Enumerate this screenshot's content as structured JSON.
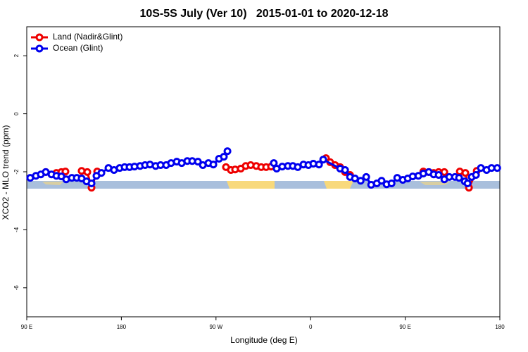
{
  "chart_data": {
    "type": "line",
    "title": "10S-5S July (Ver 10)   2015-01-01 to 2020-12-18",
    "x_label": "Longitude (deg E)",
    "y_label": "XCO2 - MLO trend (ppm)",
    "xlim": [
      90,
      540
    ],
    "ylim": [
      -7,
      3
    ],
    "xticks": [
      {
        "value": 90,
        "label": "90 E"
      },
      180,
      {
        "value": 270,
        "label": "90 W"
      },
      {
        "value": 360,
        "label": "0"
      },
      {
        "value": 450,
        "label": "90 E"
      },
      {
        "value": 540,
        "label": "180"
      }
    ],
    "yticks": [
      2,
      0,
      -2,
      -4,
      -6
    ],
    "legend": "topleft",
    "series": [
      {
        "name": "Land (Nadir&Glint)",
        "color": "#ee0000",
        "x": [
          108.1,
          118.2,
          122.9,
          126.8,
          134,
          142.2,
          147.6,
          151.6,
          157,
          220,
          279.5,
          284.2,
          288.2,
          293.6,
          298.3,
          303,
          308.3,
          313,
          317.7,
          322.4,
          350,
          374.6,
          378.6,
          383.3,
          388.1,
          392.8,
          397.5,
          430,
          467.2,
          472.4,
          477.1,
          481.8,
          487.2,
          495,
          501.9,
          507.2,
          510.6,
          518
        ],
        "values": [
          -2.01,
          -2.04,
          -2.01,
          -1.99,
          null,
          -1.97,
          -2.01,
          -2.55,
          -1.99,
          null,
          -1.84,
          -1.94,
          -1.92,
          -1.89,
          -1.8,
          -1.77,
          -1.8,
          -1.84,
          -1.84,
          -1.82,
          null,
          -1.53,
          -1.67,
          -1.77,
          -1.84,
          -2.01,
          -2.11,
          null,
          -1.99,
          -2.01,
          -2.04,
          -2.01,
          -2.01,
          null,
          -1.99,
          -2.04,
          -2.55,
          -1.97
        ]
      },
      {
        "name": "Ocean (Glint)",
        "color": "#0000ee",
        "x": [
          93.3,
          98.7,
          103.4,
          108.1,
          113.5,
          118.2,
          122.9,
          127.5,
          132.9,
          137.6,
          142.2,
          146.9,
          151.6,
          156.3,
          161,
          167.7,
          173,
          178.4,
          183.1,
          187.8,
          192.5,
          197.8,
          202.5,
          207.2,
          212.6,
          217.3,
          222.6,
          227.3,
          232.7,
          237.4,
          242.7,
          247.4,
          252.8,
          257.5,
          262.8,
          267.5,
          272.9,
          277.5,
          280.9,
          300,
          325,
          327.7,
          333,
          338.4,
          343.1,
          347.8,
          353.2,
          357.9,
          362.6,
          368,
          372,
          388.1,
          392.8,
          397.5,
          402.2,
          407.6,
          412.9,
          417.6,
          423,
          427.5,
          432.3,
          437,
          442.4,
          447.7,
          452.4,
          457.1,
          462.5,
          467.2,
          472.4,
          477.1,
          481.8,
          487.2,
          491.9,
          497.3,
          501.2,
          506.6,
          509.3,
          513.3,
          517.3,
          522,
          527.4,
          532.1,
          537.5
        ],
        "values": [
          -2.21,
          -2.14,
          -2.09,
          -2.01,
          -2.09,
          -2.14,
          -2.16,
          -2.26,
          -2.21,
          -2.21,
          -2.23,
          -2.33,
          -2.4,
          -2.14,
          -2.04,
          -1.87,
          -1.94,
          -1.87,
          -1.84,
          -1.84,
          -1.82,
          -1.8,
          -1.77,
          -1.75,
          -1.8,
          -1.77,
          -1.77,
          -1.7,
          -1.65,
          -1.7,
          -1.63,
          -1.63,
          -1.65,
          -1.77,
          -1.7,
          -1.75,
          -1.55,
          -1.48,
          -1.29,
          null,
          -1.7,
          -1.89,
          -1.82,
          -1.8,
          -1.8,
          -1.84,
          -1.75,
          -1.77,
          -1.72,
          -1.75,
          -1.58,
          -1.89,
          -1.94,
          -2.18,
          -2.23,
          -2.31,
          -2.18,
          -2.45,
          -2.4,
          -2.31,
          -2.43,
          -2.4,
          -2.21,
          -2.28,
          -2.23,
          -2.16,
          -2.14,
          -2.06,
          -2.01,
          -2.09,
          -2.11,
          -2.26,
          -2.18,
          -2.18,
          -2.21,
          -2.33,
          -2.4,
          -2.18,
          -2.11,
          -1.87,
          -1.94,
          -1.87,
          -1.87
        ]
      }
    ]
  }
}
